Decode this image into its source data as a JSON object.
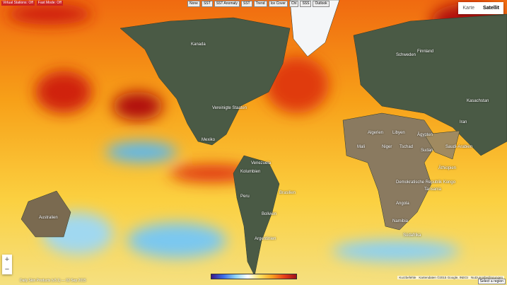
{
  "status": [
    "Virtual Stations: Off",
    "Fast Mode: Off"
  ],
  "toolbar": [
    "None",
    "SST",
    "SST Anomaly",
    "SST",
    "Trend",
    "Ice Cover",
    "Chl",
    "SSS",
    "Outlook"
  ],
  "map_type": [
    "Karte",
    "Satellit"
  ],
  "zoom": [
    "+",
    "−"
  ],
  "labels": [
    "Kanada",
    "Vereinigte Staaten",
    "Mexiko",
    "Venezuela",
    "Kolumbien",
    "Peru",
    "Brasilien",
    "Bolivien",
    "Argentinien",
    "Algerien",
    "Libyen",
    "Ägypten",
    "Mali",
    "Niger",
    "Tschad",
    "Sudan",
    "Äthiopien",
    "Demokratische Republik Kongo",
    "Angola",
    "Namibia",
    "Südafrika",
    "Tansania",
    "Saudi-Arabien",
    "Iran",
    "Schweden",
    "Finnland",
    "Australien",
    "Kasachstan"
  ],
  "footer": "Daily Skin Products (v3.1) — 02 Sep 2015",
  "attribution": [
    "Kurzbefehle",
    "Kartendaten ©2015 Google, INEGI",
    "Nutzungsbedingungen"
  ],
  "region_select": "Select a region"
}
